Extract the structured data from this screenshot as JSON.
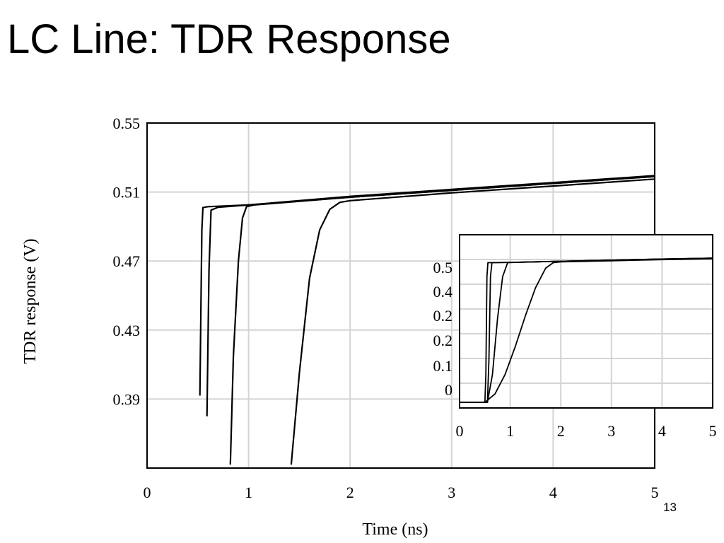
{
  "slide": {
    "title": "LC Line: TDR Response",
    "page_number": "13"
  },
  "chart_data": [
    {
      "type": "line",
      "title": "",
      "xlabel": "Time (ns)",
      "ylabel": "TDR response (V)",
      "xlim": [
        0,
        5
      ],
      "ylim": [
        0.35,
        0.55
      ],
      "x_ticks": [
        "0",
        "1",
        "2",
        "3",
        "4",
        "5"
      ],
      "y_ticks": [
        "0.55",
        "0.51",
        "0.47",
        "0.43",
        "0.39"
      ],
      "grid": true,
      "series": [
        {
          "values": [
            [
              0.52,
              0.392
            ],
            [
              0.54,
              0.488
            ],
            [
              0.55,
              0.501
            ],
            [
              0.6,
              0.5015
            ],
            [
              1.0,
              0.5025
            ],
            [
              2.0,
              0.5075
            ],
            [
              3.0,
              0.5115
            ],
            [
              4.0,
              0.5155
            ],
            [
              5.0,
              0.5195
            ]
          ]
        },
        {
          "values": [
            [
              0.59,
              0.38
            ],
            [
              0.61,
              0.465
            ],
            [
              0.63,
              0.4995
            ],
            [
              0.7,
              0.5012
            ],
            [
              1.0,
              0.5025
            ],
            [
              2.0,
              0.507
            ],
            [
              3.0,
              0.511
            ],
            [
              4.0,
              0.515
            ],
            [
              5.0,
              0.519
            ]
          ]
        },
        {
          "values": [
            [
              0.82,
              0.352
            ],
            [
              0.85,
              0.415
            ],
            [
              0.9,
              0.47
            ],
            [
              0.94,
              0.495
            ],
            [
              0.98,
              0.5015
            ],
            [
              1.05,
              0.5025
            ],
            [
              2.0,
              0.507
            ],
            [
              3.0,
              0.511
            ],
            [
              4.0,
              0.515
            ],
            [
              5.0,
              0.519
            ]
          ]
        },
        {
          "values": [
            [
              1.42,
              0.352
            ],
            [
              1.5,
              0.405
            ],
            [
              1.6,
              0.46
            ],
            [
              1.7,
              0.488
            ],
            [
              1.8,
              0.5
            ],
            [
              1.9,
              0.504
            ],
            [
              2.0,
              0.505
            ],
            [
              3.0,
              0.5095
            ],
            [
              4.0,
              0.5135
            ],
            [
              5.0,
              0.5175
            ]
          ]
        }
      ]
    },
    {
      "type": "line",
      "title": "",
      "xlabel": "",
      "ylabel": "",
      "xlim": [
        0,
        5
      ],
      "ylim": [
        -0.02,
        0.6
      ],
      "x_ticks": [
        "0",
        "1",
        "2",
        "3",
        "4",
        "5"
      ],
      "y_ticks": [
        "0.5",
        "0.4",
        "0.2",
        "0.2",
        "0.1",
        "0"
      ],
      "grid": true,
      "series": [
        {
          "values": [
            [
              0,
              0
            ],
            [
              0.5,
              0
            ],
            [
              0.52,
              0.1
            ],
            [
              0.54,
              0.45
            ],
            [
              0.56,
              0.5
            ],
            [
              1.0,
              0.501
            ],
            [
              2.0,
              0.505
            ],
            [
              3.0,
              0.509
            ],
            [
              4.0,
              0.513
            ],
            [
              5.0,
              0.516
            ]
          ]
        },
        {
          "values": [
            [
              0,
              0
            ],
            [
              0.55,
              0
            ],
            [
              0.58,
              0.15
            ],
            [
              0.61,
              0.45
            ],
            [
              0.64,
              0.5
            ],
            [
              1.0,
              0.501
            ],
            [
              2.0,
              0.505
            ],
            [
              3.0,
              0.509
            ],
            [
              4.0,
              0.513
            ],
            [
              5.0,
              0.516
            ]
          ]
        },
        {
          "values": [
            [
              0,
              0
            ],
            [
              0.55,
              0
            ],
            [
              0.65,
              0.1
            ],
            [
              0.75,
              0.3
            ],
            [
              0.85,
              0.45
            ],
            [
              0.95,
              0.5
            ],
            [
              1.1,
              0.501
            ],
            [
              2.0,
              0.505
            ],
            [
              3.0,
              0.509
            ],
            [
              4.0,
              0.513
            ],
            [
              5.0,
              0.516
            ]
          ]
        },
        {
          "values": [
            [
              0,
              0
            ],
            [
              0.5,
              0
            ],
            [
              0.7,
              0.03
            ],
            [
              0.9,
              0.1
            ],
            [
              1.1,
              0.2
            ],
            [
              1.3,
              0.31
            ],
            [
              1.5,
              0.41
            ],
            [
              1.7,
              0.48
            ],
            [
              1.85,
              0.5
            ],
            [
              2.0,
              0.503
            ],
            [
              3.0,
              0.507
            ],
            [
              4.0,
              0.511
            ],
            [
              5.0,
              0.514
            ]
          ]
        }
      ]
    }
  ]
}
